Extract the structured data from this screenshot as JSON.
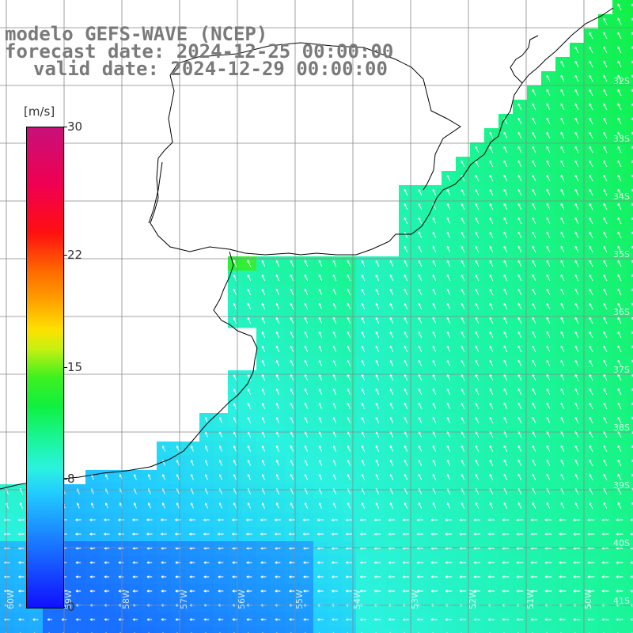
{
  "title": {
    "line1": "modelo GEFS-WAVE (NCEP)",
    "line2": "forecast date: 2024-12-25 00:00:00",
    "line3": "valid date: 2024-12-29 00:00:00"
  },
  "colorbar": {
    "unit": "[m/s]",
    "ticks": [
      "30",
      "22",
      "15",
      "8",
      "0"
    ],
    "tick_values": [
      30,
      22,
      15,
      8,
      0
    ],
    "range": [
      0,
      30
    ],
    "colors": {
      "low": "#1010ff",
      "mid": "#22ccff",
      "green": "#10f040",
      "yellow": "#ffe000",
      "orange": "#ff6a00",
      "red": "#ff1010",
      "high": "#c8107a"
    }
  },
  "map": {
    "variable": "wind speed with direction arrows",
    "land_color": "#ffffff",
    "grid_color": "#888888",
    "arrow_color": "#ffffff",
    "lat_labels": [
      "32S",
      "33S",
      "34S",
      "35S",
      "36S",
      "37S",
      "38S",
      "39S",
      "40S",
      "41S"
    ],
    "lon_labels": [
      "60W",
      "59W",
      "58W",
      "57W",
      "56W",
      "55W",
      "54W",
      "53W",
      "52W",
      "51W",
      "50W"
    ]
  }
}
